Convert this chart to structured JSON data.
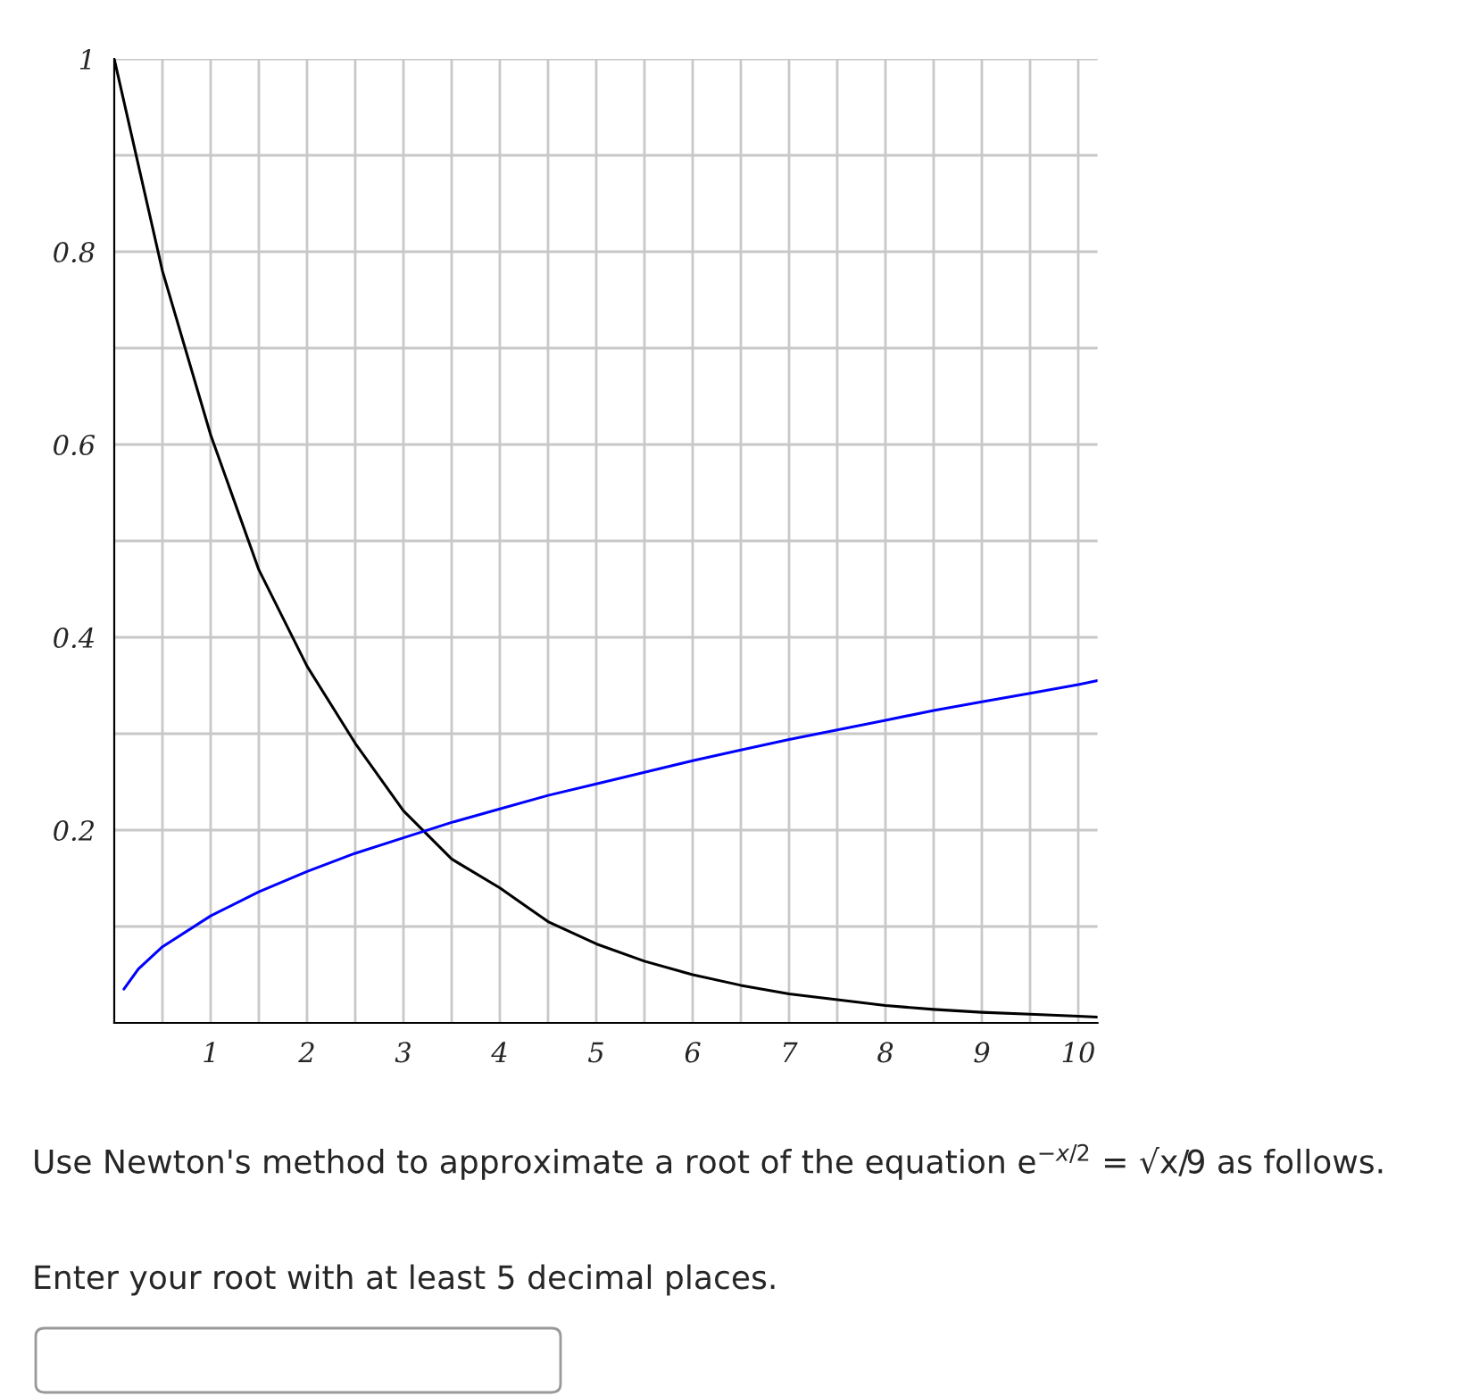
{
  "chart_data": {
    "type": "line",
    "xlim": [
      0,
      10.2
    ],
    "ylim": [
      0,
      1
    ],
    "xticks": [
      {
        "value": 0.5,
        "label": null
      },
      1,
      {
        "value": 1.5,
        "label": null
      },
      2,
      {
        "value": 2.5,
        "label": null
      },
      3,
      {
        "value": 3.5,
        "label": null
      },
      4,
      {
        "value": 4.5,
        "label": null
      },
      5,
      {
        "value": 5.5,
        "label": null
      },
      6,
      {
        "value": 6.5,
        "label": null
      },
      7,
      {
        "value": 7.5,
        "label": null
      },
      8,
      {
        "value": 8.5,
        "label": null
      },
      9,
      {
        "value": 9.5,
        "label": null
      },
      10
    ],
    "yticks": [
      {
        "value": 0.1,
        "label": null
      },
      0.2,
      {
        "value": 0.3,
        "label": null
      },
      0.4,
      {
        "value": 0.5,
        "label": null
      },
      0.6,
      {
        "value": 0.7,
        "label": null
      },
      0.8,
      {
        "value": 0.9,
        "label": null
      },
      1
    ],
    "grid": true,
    "marker": "none",
    "line_style": "solid",
    "series": [
      {
        "color": "#000000",
        "x": [
          0,
          0.5,
          1,
          1.5,
          2,
          2.5,
          3,
          3.5,
          4,
          4.5,
          5,
          5.5,
          6,
          6.5,
          7,
          7.5,
          8,
          8.5,
          9,
          9.5,
          10,
          10.2
        ],
        "values": [
          1,
          0.78,
          0.61,
          0.47,
          0.37,
          0.29,
          0.22,
          0.17,
          0.14,
          0.105,
          0.082,
          0.064,
          0.05,
          0.039,
          0.03,
          0.024,
          0.018,
          0.014,
          0.011,
          0.009,
          0.007,
          0.006
        ]
      },
      {
        "color": "#0000ff",
        "x": [
          0.1,
          0.25,
          0.5,
          1,
          1.5,
          2,
          2.5,
          3,
          3.5,
          4,
          4.5,
          5,
          5.5,
          6,
          6.5,
          7,
          7.5,
          8,
          8.5,
          9,
          9.5,
          10,
          10.2
        ],
        "values": [
          0.035,
          0.056,
          0.079,
          0.111,
          0.136,
          0.157,
          0.176,
          0.192,
          0.208,
          0.222,
          0.236,
          0.248,
          0.26,
          0.272,
          0.283,
          0.294,
          0.304,
          0.314,
          0.324,
          0.333,
          0.342,
          0.351,
          0.355
        ]
      }
    ],
    "annotations": [
      "Use Newton's method to approximate a root of the equation e$^{−x/2}$ = √x/9 as follows.",
      "Enter your root with at least 5 decimal places."
    ]
  }
}
